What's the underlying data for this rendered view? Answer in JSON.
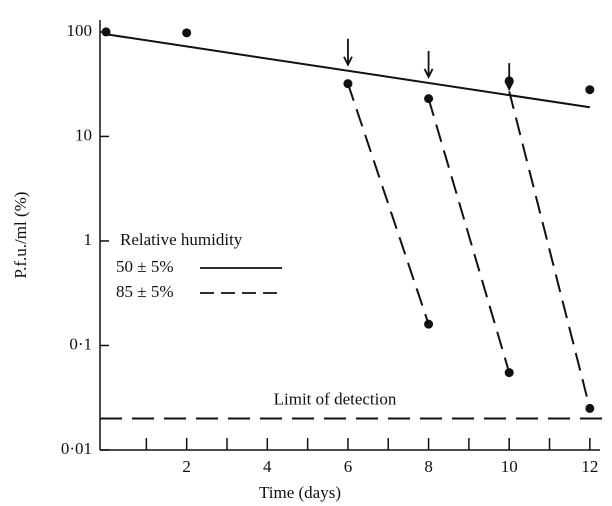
{
  "chart_data": {
    "type": "line",
    "xlabel": "Time (days)",
    "ylabel": "P.f.u./ml (%)",
    "xlim": [
      -0.15,
      12.5
    ],
    "xticks": [
      2,
      4,
      6,
      8,
      10,
      12
    ],
    "xminorticks": [
      1,
      3,
      5,
      7,
      9,
      11
    ],
    "ylim": [
      0.01,
      130
    ],
    "log_y": true,
    "yticks": [
      {
        "value": 0.01,
        "label": "0·01"
      },
      {
        "value": 0.1,
        "label": "0·1"
      },
      1,
      10,
      100
    ],
    "legend_title": "Relative humidity",
    "legend": "left",
    "series": [
      {
        "name": "50 ± 5%",
        "color": "#111",
        "dash": false,
        "x": [
          0,
          12
        ],
        "values": [
          95,
          19
        ]
      },
      {
        "name": "85 ± 5%",
        "color": "#111",
        "dash": true,
        "x": [
          6,
          8,
          null,
          8,
          10,
          null,
          10,
          12
        ],
        "values": [
          32,
          0.16,
          null,
          23,
          0.055,
          null,
          27,
          0.025
        ]
      }
    ],
    "points": {
      "x": [
        0,
        2,
        6,
        8,
        10,
        12,
        8,
        10,
        12
      ],
      "values": [
        100,
        98,
        32,
        23,
        34,
        28,
        0.16,
        0.055,
        0.025
      ]
    },
    "arrows_x": [
      6,
      8,
      10
    ],
    "detection_limit": {
      "label": "Limit of detection",
      "value": 0.02
    }
  }
}
